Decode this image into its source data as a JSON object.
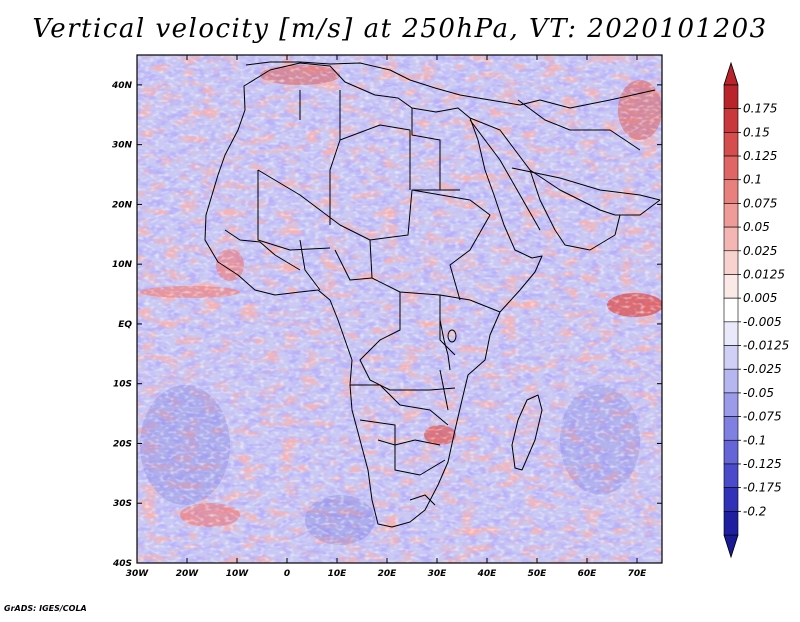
{
  "title": "Vertical velocity [m/s] at 250hPa, VT: 2020101203",
  "map": {
    "lat_labels": [
      "40N",
      "30N",
      "20N",
      "10N",
      "EQ",
      "10S",
      "20S",
      "30S",
      "40S"
    ],
    "lat_values": [
      40,
      30,
      20,
      10,
      0,
      -10,
      -20,
      -30,
      -40
    ],
    "lon_labels": [
      "30W",
      "20W",
      "10W",
      "0",
      "10E",
      "20E",
      "30E",
      "40E",
      "50E",
      "60E",
      "70E"
    ],
    "lon_values": [
      -30,
      -20,
      -10,
      0,
      10,
      20,
      30,
      40,
      50,
      60,
      70
    ],
    "lon_range": [
      -30,
      75
    ],
    "lat_range": [
      -40,
      45
    ]
  },
  "colorbar": {
    "labels": [
      "0.175",
      "0.15",
      "0.125",
      "0.1",
      "0.075",
      "0.05",
      "0.025",
      "0.0125",
      "0.005",
      "-0.005",
      "-0.0125",
      "-0.025",
      "-0.05",
      "-0.075",
      "-0.1",
      "-0.125",
      "-0.175",
      "-0.2"
    ],
    "colors": [
      "#b8242a",
      "#c9383a",
      "#d54e4d",
      "#e06666",
      "#e8807e",
      "#ef9b98",
      "#f4b6b3",
      "#f8d2cf",
      "#fbe9e7",
      "#ffffff",
      "#e9e9fb",
      "#d0d0f6",
      "#b6b6f0",
      "#9b9be9",
      "#8080e2",
      "#6565d8",
      "#4a4acb",
      "#3232b8",
      "#1f1fa0"
    ],
    "top_arrow_color": "#b8242a",
    "bottom_arrow_color": "#1a1a96"
  },
  "credit": "GrADS: IGES/COLA"
}
